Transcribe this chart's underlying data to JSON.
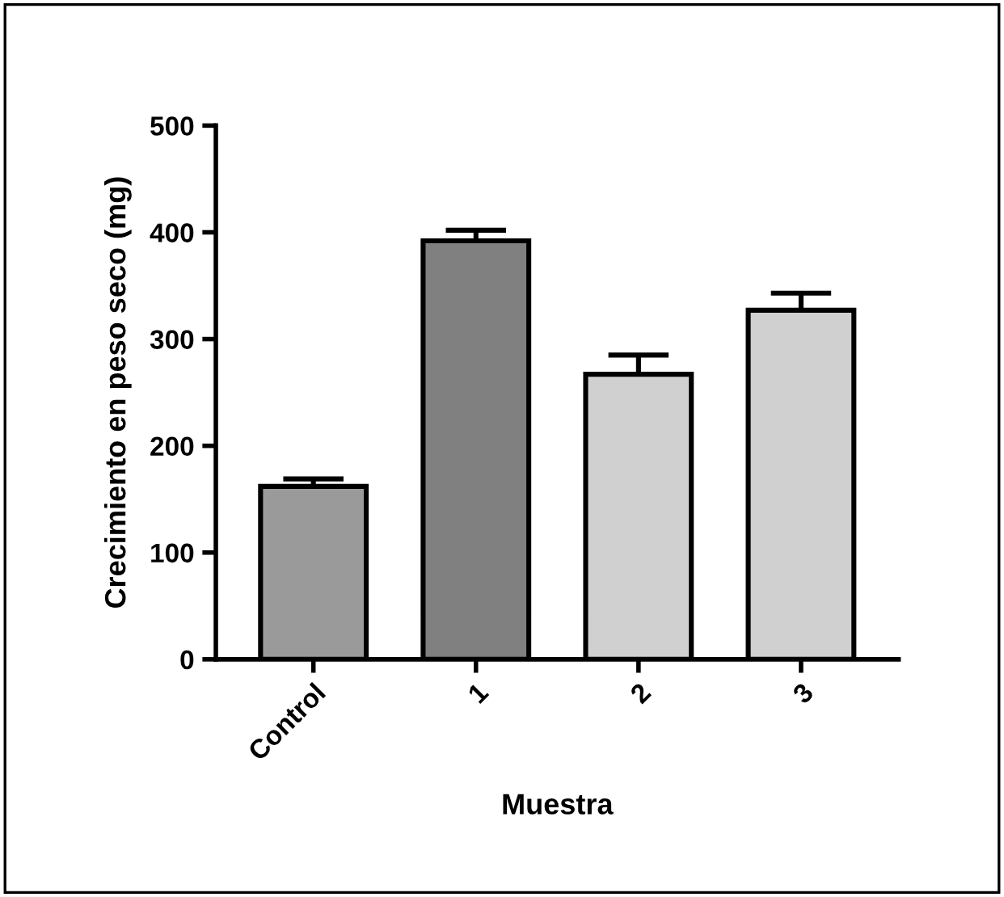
{
  "chart_data": {
    "type": "bar",
    "xlabel": "Muestra",
    "ylabel": "Crecimiento en peso seco (mg)",
    "categories": [
      "Control",
      "1",
      "2",
      "3"
    ],
    "values": [
      162,
      392,
      267,
      327
    ],
    "errors": [
      [
        162,
        169
      ],
      [
        392,
        402
      ],
      [
        267,
        285
      ],
      [
        327,
        343
      ]
    ],
    "colors": [
      "#9a9a9a",
      "#808080",
      "#d0d0d0",
      "#d0d0d0"
    ],
    "ylim": [
      0,
      500
    ],
    "yticks": [
      0,
      100,
      200,
      300,
      400,
      500
    ],
    "grid": false
  }
}
